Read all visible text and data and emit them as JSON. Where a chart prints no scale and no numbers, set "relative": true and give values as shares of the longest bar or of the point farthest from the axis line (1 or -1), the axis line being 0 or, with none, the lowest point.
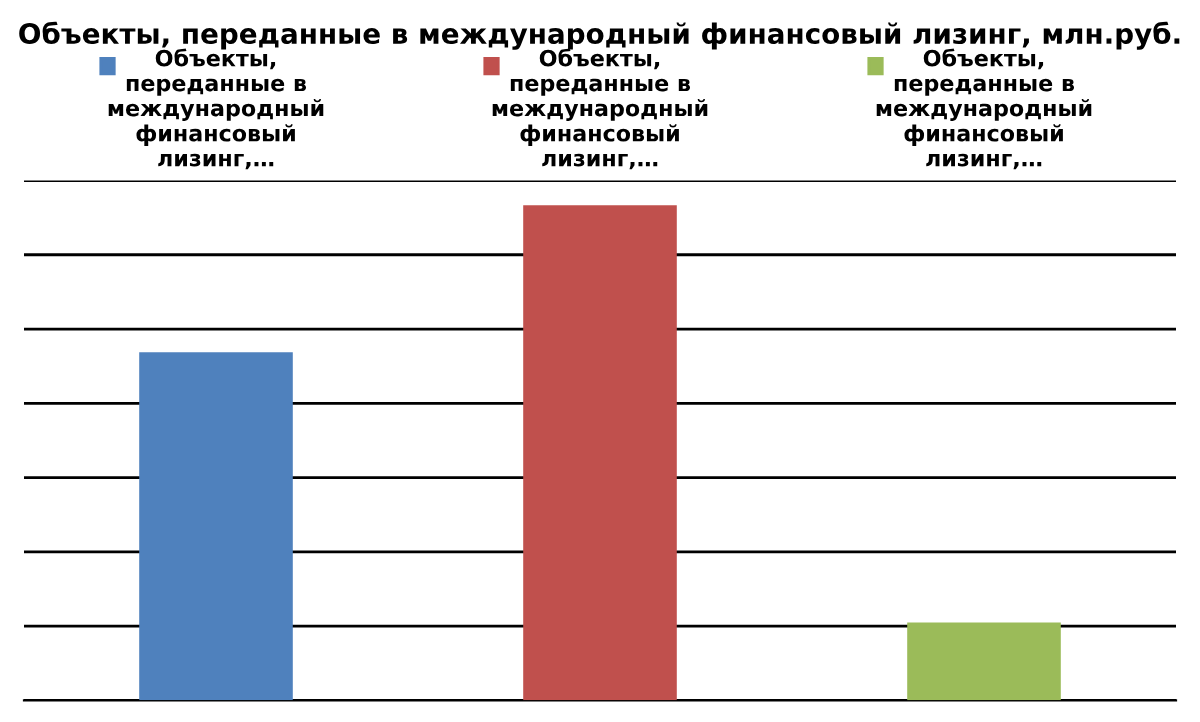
{
  "chart_data": {
    "type": "bar",
    "title": "Объекты, переданные в международный финансовый лизинг, млн.руб.",
    "categories": [
      "Объекты, переданные в международный финансовый лизинг,…",
      "Объекты, переданные в международный финансовый лизинг,…",
      "Объекты, переданные в международный финансовый лизинг,…"
    ],
    "values": [
      0.703,
      1,
      0.157
    ],
    "colors": [
      "#4f81bd",
      "#c0504d",
      "#9bbb59"
    ],
    "relative": true,
    "grid": "y",
    "legend": false
  }
}
